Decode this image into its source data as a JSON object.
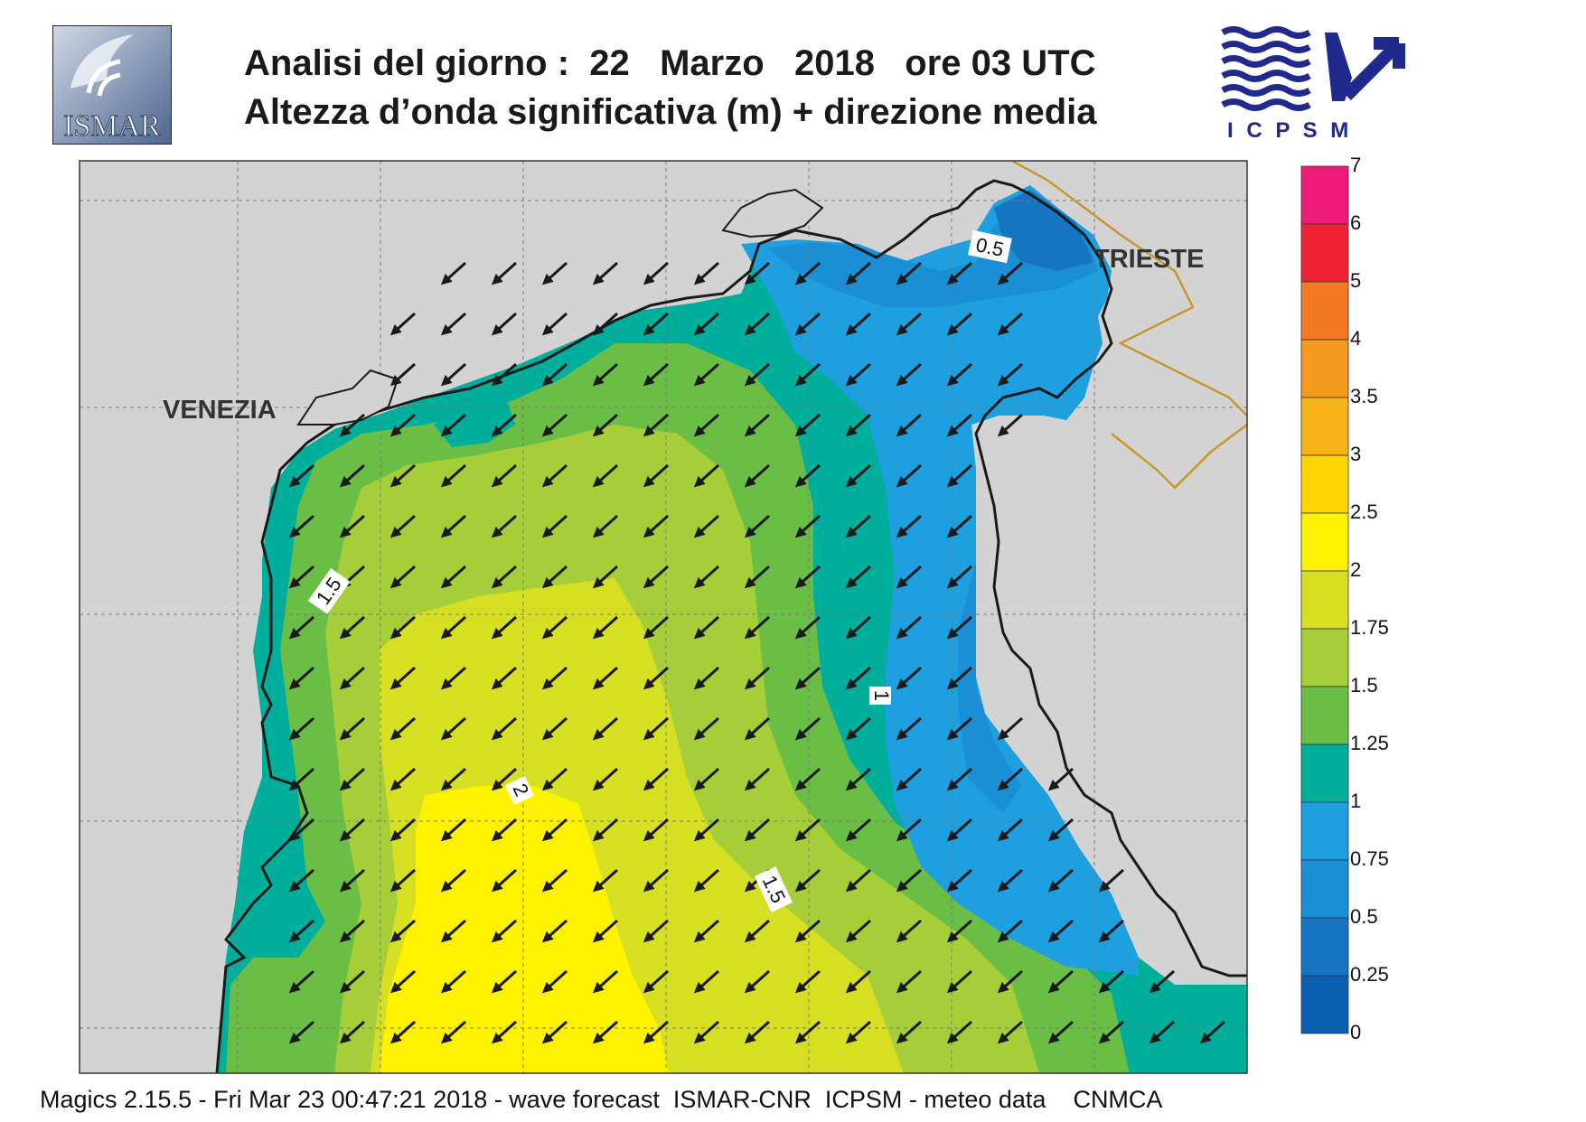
{
  "header": {
    "line1": "Analisi del giorno :  22   Marzo   2018   ore 03 UTC",
    "line2": "Altezza d’onda significativa (m) + direzione media"
  },
  "logos": {
    "left": {
      "icon": "ismar-logo-icon",
      "text": "ISMAR"
    },
    "right": {
      "icon": "icpsm-logo-icon",
      "text": "I C P S M"
    }
  },
  "map": {
    "cities": {
      "venezia": "VENEZIA",
      "trieste": "TRIESTE"
    },
    "contour_labels": [
      "0.5",
      "1.5",
      "1",
      "2",
      "1.5"
    ],
    "arrow_direction": "south-west"
  },
  "legend": {
    "labels": [
      "7",
      "6",
      "5",
      "4",
      "3.5",
      "3",
      "2.5",
      "2",
      "1.75",
      "1.5",
      "1.25",
      "1",
      "0.75",
      "0.5",
      "0.25",
      "0"
    ],
    "colors": [
      "#f01a78",
      "#ee2233",
      "#f27a24",
      "#f49a1e",
      "#f7b418",
      "#ffd400",
      "#fff200",
      "#d7df23",
      "#a6ce39",
      "#6abd45",
      "#00ae9c",
      "#1d9fe0",
      "#1b8fd6",
      "#1575c2",
      "#0a5fb0"
    ]
  },
  "colors": {
    "land": "#d3d3d3",
    "coast": "#1a1a1a",
    "border": "#c8962c",
    "arrow": "#1a1a1a"
  },
  "footer": "Magics 2.15.5 - Fri Mar 23 00:47:21 2018 - wave forecast  ISMAR-CNR  ICPSM - meteo data    CNMCA"
}
